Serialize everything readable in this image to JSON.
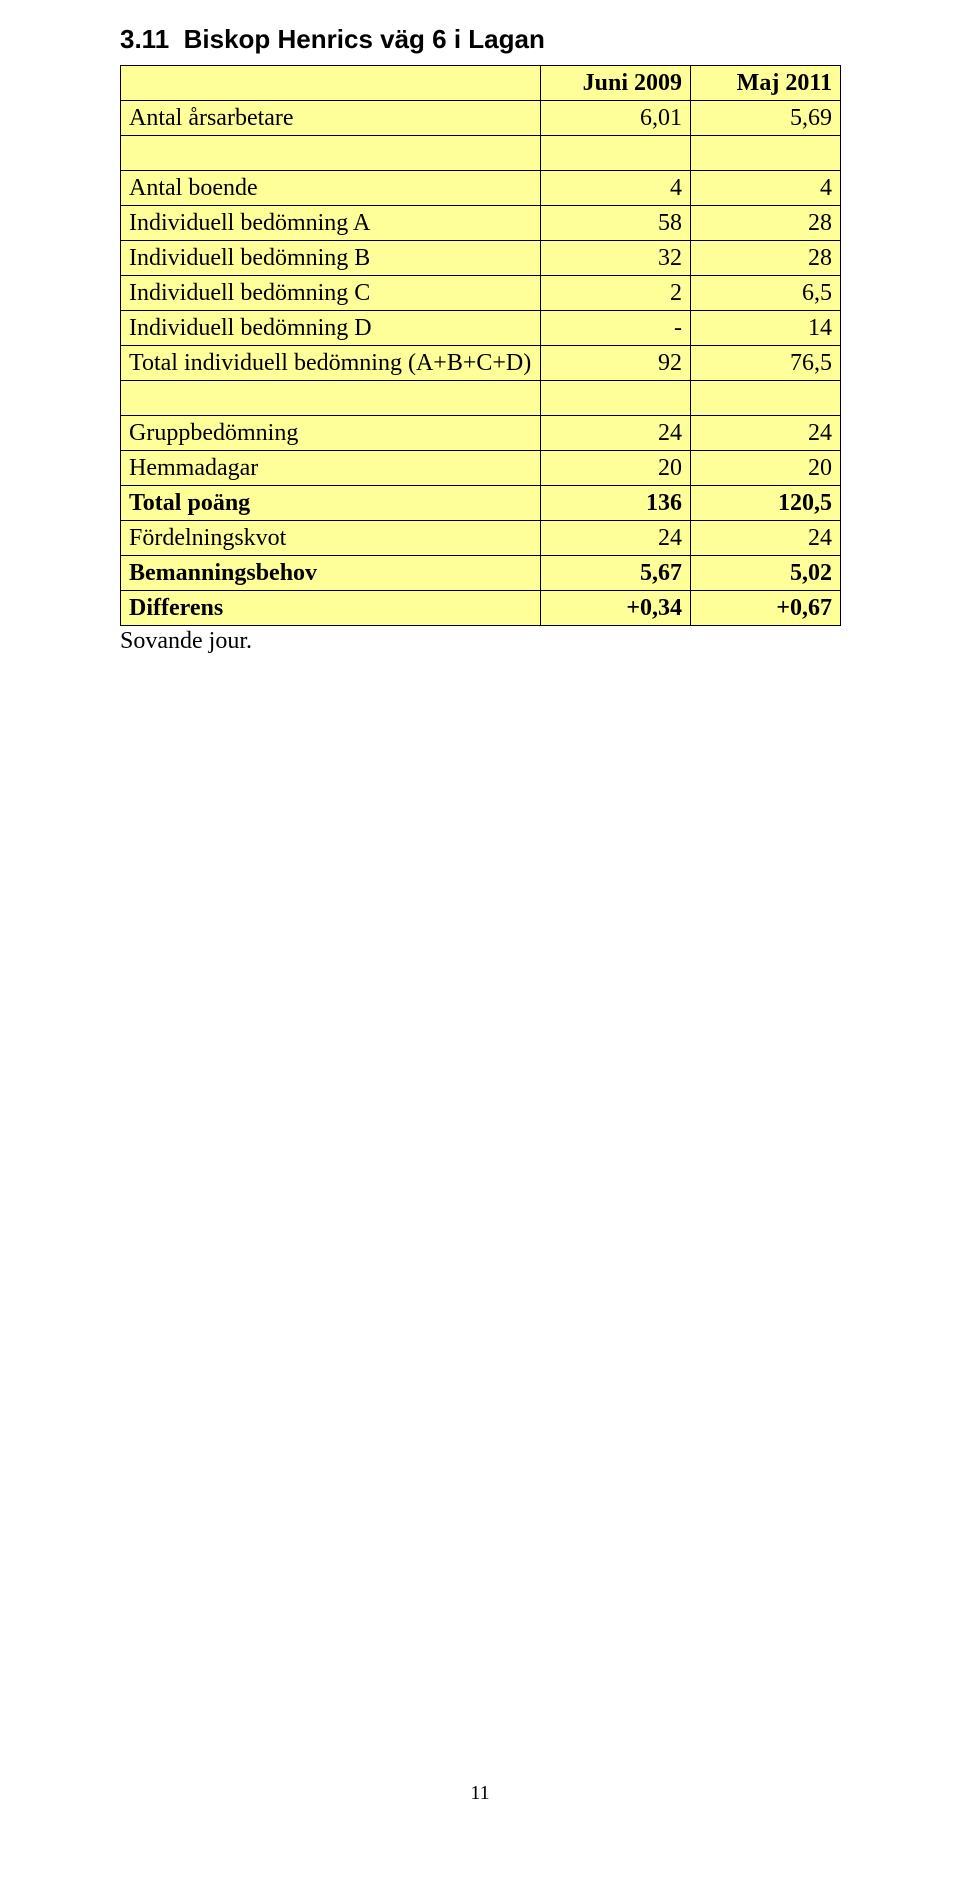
{
  "section": {
    "number": "3.11",
    "title": "Biskop Henrics väg 6 i Lagan"
  },
  "table": {
    "colors": {
      "row_fill": "#ffff99",
      "border": "#000000",
      "text": "#000000",
      "background": "#ffffff"
    },
    "header": {
      "col1": "",
      "col2": "Juni 2009",
      "col3": "Maj 2011"
    },
    "rows": [
      {
        "type": "fill",
        "label": "Antal årsarbetare",
        "v1": "6,01",
        "v2": "5,69"
      },
      {
        "type": "empty"
      },
      {
        "type": "fill",
        "label": "Antal boende",
        "v1": "4",
        "v2": "4"
      },
      {
        "type": "fill",
        "label": "Individuell bedömning A",
        "v1": "58",
        "v2": "28"
      },
      {
        "type": "fill",
        "label": "Individuell bedömning B",
        "v1": "32",
        "v2": "28"
      },
      {
        "type": "fill",
        "label": "Individuell bedömning C",
        "v1": "2",
        "v2": "6,5"
      },
      {
        "type": "fill",
        "label": "Individuell bedömning D",
        "v1": "-",
        "v2": "14"
      },
      {
        "type": "fill",
        "label": "Total individuell bedömning (A+B+C+D)",
        "v1": "92",
        "v2": "76,5"
      },
      {
        "type": "empty"
      },
      {
        "type": "fill",
        "label": "Gruppbedömning",
        "v1": "24",
        "v2": "24"
      },
      {
        "type": "fill",
        "label": "Hemmadagar",
        "v1": "20",
        "v2": "20"
      },
      {
        "type": "fill bold",
        "label": "Total poäng",
        "v1": "136",
        "v2": "120,5"
      },
      {
        "type": "fill",
        "label": "Fördelningskvot",
        "v1": "24",
        "v2": "24"
      },
      {
        "type": "fill bold",
        "label": "Bemanningsbehov",
        "v1": "5,67",
        "v2": "5,02"
      },
      {
        "type": "fill bold",
        "label": "Differens",
        "v1": "+0,34",
        "v2": "+0,67"
      }
    ]
  },
  "footer_note": "Sovande jour.",
  "page_number": "11"
}
